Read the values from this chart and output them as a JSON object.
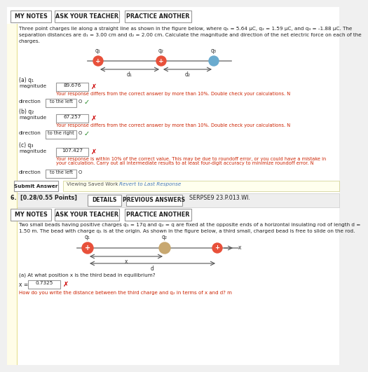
{
  "bg_color": "#f0f0f0",
  "white": "#ffffff",
  "light_yellow": "#fffde8",
  "section1": {
    "buttons": [
      "MY NOTES",
      "ASK YOUR TEACHER",
      "PRACTICE ANOTHER"
    ],
    "prob_line1a": "Three point charges lie along a straight line as shown in the figure below, where q",
    "prob_line1b": "₁ = 5.64 μC, q",
    "prob_line1c": "₂ = 1.59 μC, and q",
    "prob_line1d": "₃ = -1.88 μC. The",
    "prob_line2": "separation distances are d₁ = 3.00 cm and d₂ = 2.00 cm. Calculate the magnitude and direction of the net electric force on each of the",
    "prob_line3": "charges.",
    "charge_colors": [
      "#e8503a",
      "#e8503a",
      "#6aabcf"
    ],
    "parts": [
      {
        "label": "(a) q₁",
        "magnitude": "89.676",
        "mag_feedback": "Your response differs from the correct answer by more than 10%. Double check your calculations. N",
        "direction": "to the left",
        "dir_correct": true,
        "mag_correct": false
      },
      {
        "label": "(b) q₂",
        "magnitude": "67.257",
        "mag_feedback": "Your response differs from the correct answer by more than 10%. Double check your calculations. N",
        "direction": "to the right",
        "dir_correct": true,
        "mag_correct": false
      },
      {
        "label": "(c) q₃",
        "magnitude": "107.427",
        "mag_feedback_line1": "Your response is within 10% of the correct value. This may be due to roundoff error, or you could have a mistake in",
        "mag_feedback_line2": "your calculation. Carry out all intermediate results to at least four-digit accuracy to minimize roundoff error. N",
        "direction": "to the left",
        "dir_correct": false,
        "mag_correct": false
      }
    ],
    "submit_btn": "Submit Answer",
    "viewing_text": "Viewing Saved Work",
    "revert_text": "Revert to Last Response"
  },
  "section2": {
    "header_left": "6.  [0.28/0.55 Points]",
    "detail_btns": [
      "DETAILS",
      "PREVIOUS ANSWERS"
    ],
    "code": "SERPSE9 23.P.013.WI.",
    "buttons": [
      "MY NOTES",
      "ASK YOUR TEACHER",
      "PRACTICE ANOTHER"
    ],
    "prob_line1": "Two small beads having positive charges q₁ = 17q and q₂ = q are fixed at the opposite ends of a horizontal insulating rod of length d =",
    "prob_line2": "1.50 m. The bead with charge q₁ is at the origin. As shown in the figure below, a third small, charged bead is free to slide on the rod.",
    "part_a_label": "(a) At what position x is the third bead in equilibrium?",
    "x_value": "0.7325",
    "x_feedback": "How do you write the distance between the third charge and q₂ in terms of x and d? m"
  }
}
